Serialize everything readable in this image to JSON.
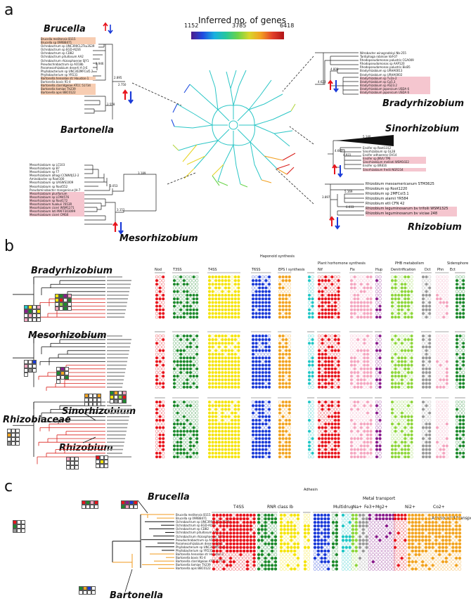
{
  "figure": {
    "panel_a": {
      "letter": "a",
      "legend": {
        "title": "Inferred no. of genes",
        "min": "1152",
        "mid": "3785",
        "max": "6418"
      },
      "genera": {
        "brucella": "Brucella",
        "bartonella": "Bartonella",
        "mesorhizobium": "Mesorhizobium",
        "bradyrhizobium": "Bradyrhizobium",
        "sinorhizobium": "Sinorhizobium",
        "rhizobium": "Rhizobium"
      },
      "brucella_bartonella_taxa": [
        "Brucella melitensis B115",
        "Brucella sp 09RB8471",
        "Ochrobactrum sp UNC390CL2Tsu3S39",
        "Ochrobactrum sp EGD-AQ16",
        "Ochrobactrum sp CDB2",
        "Ochrobactrum pituitosum AA2",
        "Ochrobactrum rhizosphaerae SJY1",
        "Pseudochrobactrum sp AO18b",
        "Paramesorhizobium deserti A-3-E",
        "Phyllobacterium sp UNC302MFCol5.2",
        "Phyllobacterium sp YR531",
        "Bartonella henselae str Houston-1",
        "Bartonella bovis 91-4",
        "Bartonella clarridgeiae ATCC 51734",
        "Bartonella tamiae Th239",
        "Bartonella apis BBC0122"
      ],
      "mesorhizobium_taxa": [
        "Mesorhizobium sp LC103",
        "Mesorhizobium sp B7",
        "Mesorhizobium sp F7",
        "Mesorhizobium alhagi CCNWXJ12-2",
        "Aminobacter sp Root100",
        "Mesorhizobium sp UASWS1009",
        "Mesorhizobium sp Root552",
        "Pseudaminobacter manganicus JH-7",
        "Mesorhizobium plurifarium",
        "Mesorhizobium sp LCM4576",
        "Mesorhizobium sp Root172",
        "Mesorhizobium huakuii 7653R",
        "Mesorhizobium ciceri WSM1271",
        "Mesorhizobium loti MAFF303099",
        "Mesorhizobium ciceri CMG6"
      ],
      "bradyrhizobium_taxa": [
        "Nitrobacter winogradskyi Nb-255",
        "Tardiphaga robiniae Vaf-07",
        "Rhodopseudomonas palustris CGA009",
        "Rhodopseudomonas sp AAP120",
        "Rhodopseudomonas palustris BisB5",
        "Bradyrhizobium sp URHA0013",
        "Bradyrhizobium sp URHA0002",
        "Bradyrhizobium sp Tv2a-2",
        "Bradyrhizobium sp Cp5.3",
        "Bradyrhizobium sp AS23.2",
        "Bradyrhizobium japonicum USDA 6",
        "Bradyrhizobium japonicum USDA 6"
      ],
      "sinorhizobium_taxa": [
        "Ensifer sp Root1312",
        "Sinorhizobium sp GL28",
        "Ensifer adhaerens OV14",
        "Ensifer sp JNVU TP6",
        "Sinorhizobium meliloti WSM1022",
        "Ensifer sp BR816",
        "Sinorhizobium fredii NGR234"
      ],
      "rhizobium_taxa": [
        "Rhizobium mesoamericanum STM3625",
        "Rhizobium sp Root1220",
        "Rhizobium sp 2MFCol3.1",
        "Rhizobium alamii YR584",
        "Rhizobium etli CFN 42",
        "Rhizobium leguminosarum bv trifolii WSM1325",
        "Rhizobium leguminosarum bv viciae 248"
      ],
      "node_values": [
        "2.946",
        "2.895",
        "2.750",
        "2.558",
        "3.053",
        "3.189",
        "3.152",
        "4.800",
        "4.623",
        "4.602",
        "4.931",
        "5.140",
        "5.169",
        "3.897",
        "6.033"
      ]
    },
    "panel_b": {
      "letter": "b",
      "genera": {
        "bradyrhizobium": "Bradyrhizobium",
        "mesorhizobium": "Mesorhizobium",
        "sinorhizobium": "Sinorhizobium",
        "rhizobiaceae": "Rhizobiaceae",
        "rhizobium": "Rhizobium"
      },
      "group_headers": {
        "haponoid": "Haponoid synthesis",
        "plant_hormone": "Plant horhomone synthesis",
        "phb": "PHB metabolism",
        "siderophore": "Siderophore"
      },
      "columns": [
        "Nod",
        "T3SS",
        "T4SS",
        "T6SS",
        "EPS I synthesis",
        "Nif",
        "Fix",
        "Hup",
        "Denitrification",
        "Dct",
        "Phn",
        "Ect"
      ]
    },
    "panel_c": {
      "letter": "c",
      "genera": {
        "brucella": "Brucella",
        "bartonella": "Bartonella"
      },
      "top_headers": {
        "adhesin": "Adhesin",
        "metal_transport": "Metal transport"
      },
      "columns": [
        "T4SS",
        "RNR class Ib",
        "Multidrug",
        "Na+",
        "Fe3+",
        "Mg2+",
        "Ni2+",
        "Co2+",
        "Amino acid transport"
      ],
      "taxa": [
        "Brucella melitensis B115",
        "Brucella sp 09RB8471",
        "Ochrobactrum sp UNC390CL2Tsu3S39",
        "Ochrobactrum sp EGD-AQ16",
        "Ochrobactrum sp CDB2",
        "Ochrobactrum pituitosum AA2",
        "Ochrobactrum rhizosphaerae SJY1",
        "Pseudochrobactrum sp AO18b",
        "Paramesorhizobium deserti A-3-E",
        "Phyllobacterium sp UNC302MFCol5.2",
        "Phyllobacterium sp YR531",
        "Bartonella henselae str Houston-1",
        "Bartonella bovis 91-4",
        "Bartonella clarridgeiae ATCC 51734",
        "Bartonella tamiae Th239",
        "Bartonella apis BBC0122"
      ]
    },
    "colors": {
      "red": "#e8141c",
      "green": "#1d8a2c",
      "yellow": "#f5e40a",
      "blue": "#1a3ad8",
      "orange": "#f2a31f",
      "purple": "#8a1c8c",
      "pink": "#f4a6c0",
      "lightgreen": "#8ed63b",
      "gray": "#9a9a9a",
      "teal": "#21c7c7",
      "branch_red": "#d9201c",
      "branch_orange": "#f09a1c"
    }
  }
}
